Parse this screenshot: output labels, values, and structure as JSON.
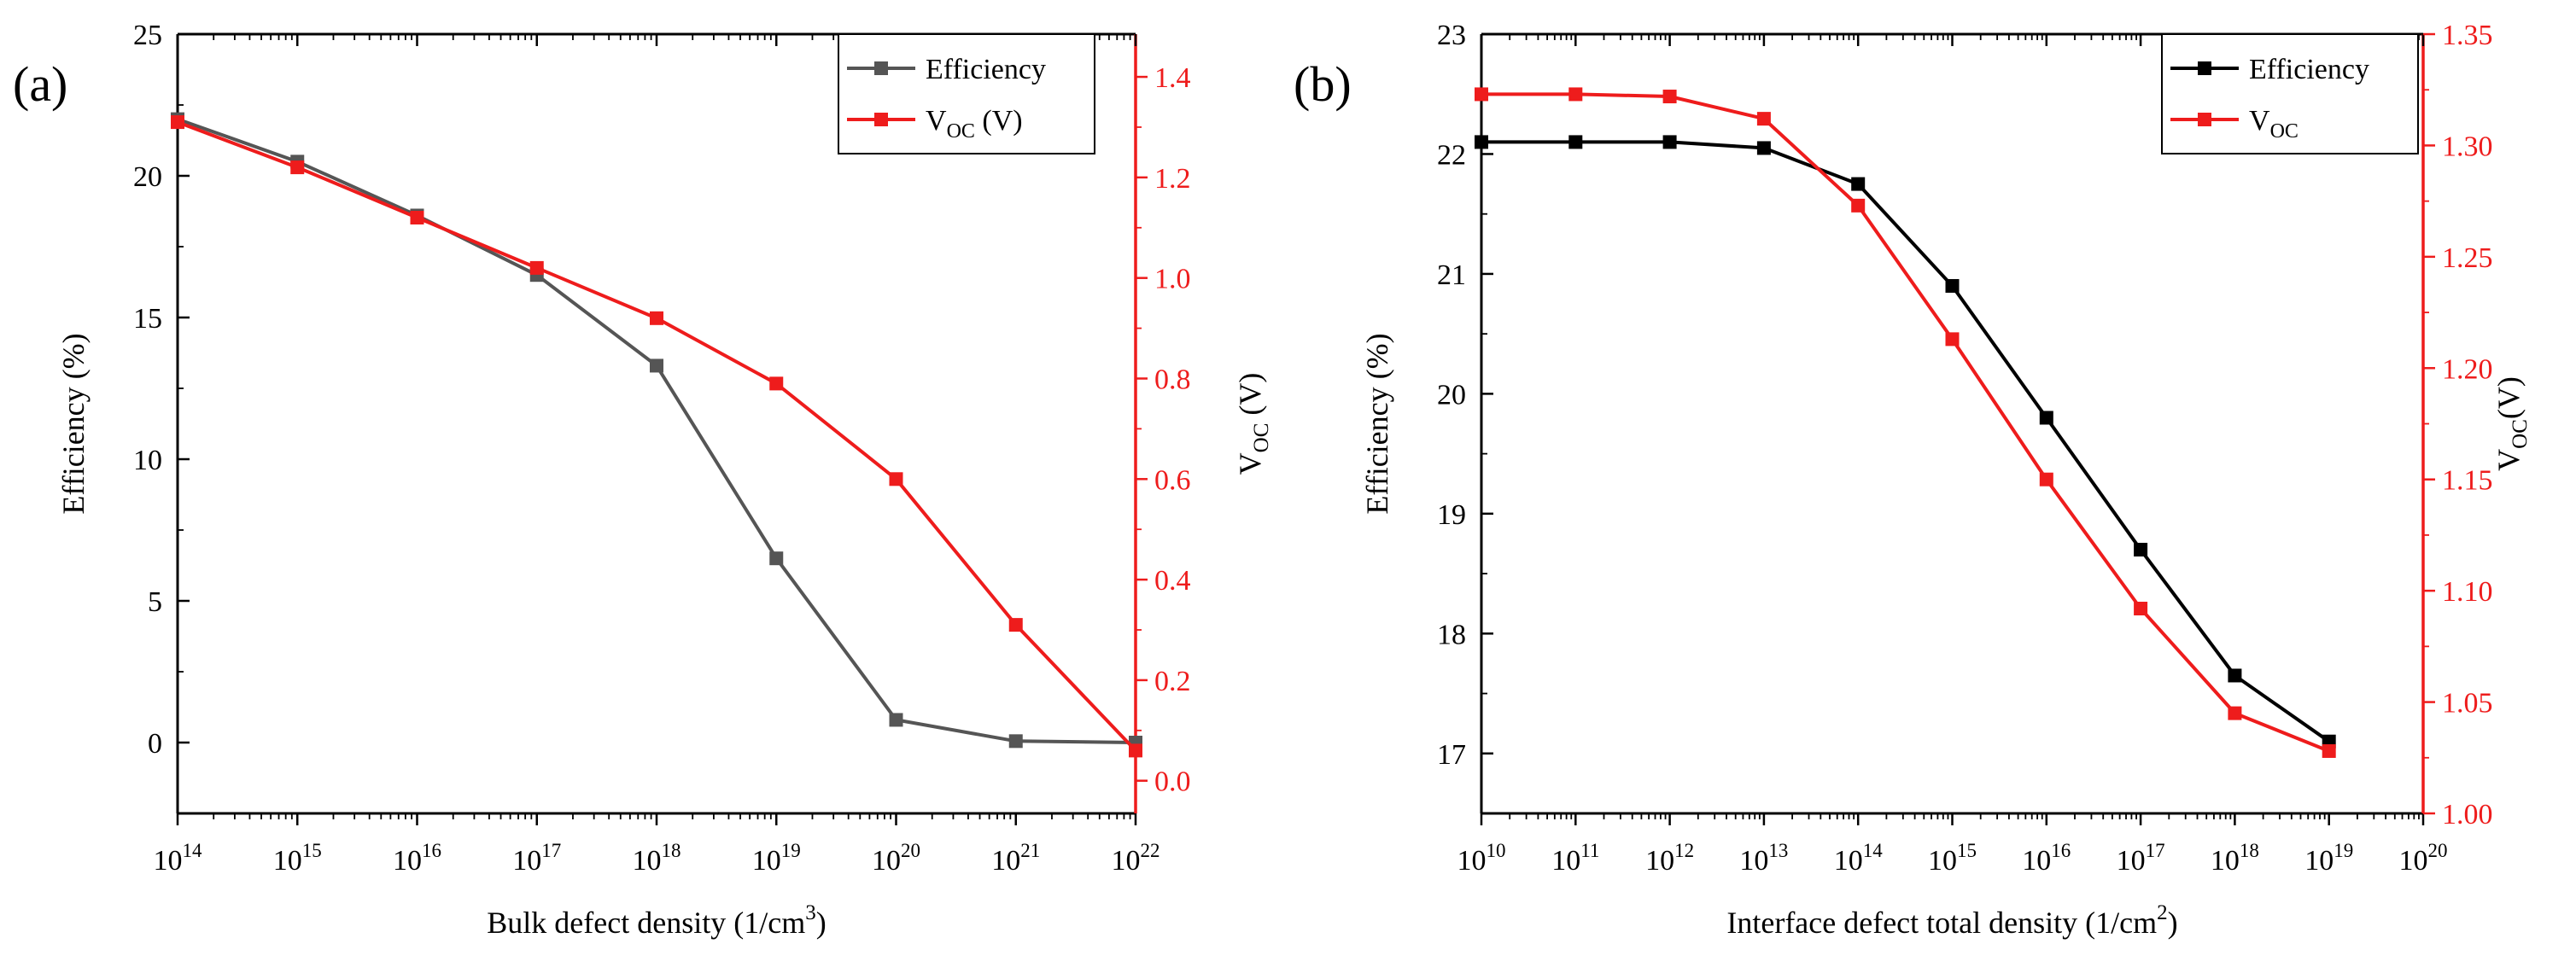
{
  "figure": {
    "colors": {
      "black": "#000000",
      "grey": "#555555",
      "red": "#ee1c1c",
      "white": "#ffffff"
    }
  },
  "chart_data": [
    {
      "panel_label": "(a)",
      "type": "line",
      "xlabel": "Bulk defect density (1/cm",
      "xlabel_sup": "3",
      "xlabel_tail": ")",
      "x_scale": "log",
      "xlim": [
        14,
        22
      ],
      "x_ticks": [
        {
          "base": "10",
          "exp": "14"
        },
        {
          "base": "10",
          "exp": "15"
        },
        {
          "base": "10",
          "exp": "16"
        },
        {
          "base": "10",
          "exp": "17"
        },
        {
          "base": "10",
          "exp": "18"
        },
        {
          "base": "10",
          "exp": "19"
        },
        {
          "base": "10",
          "exp": "20"
        },
        {
          "base": "10",
          "exp": "21"
        },
        {
          "base": "10",
          "exp": "22"
        }
      ],
      "y_left": {
        "label": "Efficiency (%)",
        "lim": [
          -2.5,
          25
        ],
        "ticks": [
          "0",
          "5",
          "10",
          "15",
          "20",
          "25"
        ]
      },
      "y_right": {
        "label_main": "V",
        "label_sub": "OC",
        "label_tail": " (V)",
        "lim": [
          -0.065,
          1.485
        ],
        "ticks": [
          "0.0",
          "0.2",
          "0.4",
          "0.6",
          "0.8",
          "1.0",
          "1.2",
          "1.4"
        ]
      },
      "legend": {
        "position": "top-right",
        "entries": [
          {
            "name": "Efficiency"
          },
          {
            "main": "V",
            "sub": "OC",
            "tail": " (V)"
          }
        ]
      },
      "series": [
        {
          "name": "Efficiency",
          "axis": "left",
          "color": "#555555",
          "x": [
            14,
            15,
            16,
            17,
            18,
            19,
            20,
            21,
            22
          ],
          "values": [
            22.0,
            20.5,
            18.6,
            16.5,
            13.3,
            6.5,
            0.8,
            0.05,
            0.0
          ]
        },
        {
          "name": "V_OC (V)",
          "axis": "right",
          "color": "#ee1c1c",
          "x": [
            14,
            15,
            16,
            17,
            18,
            19,
            20,
            21,
            22
          ],
          "values": [
            1.31,
            1.22,
            1.12,
            1.02,
            0.92,
            0.79,
            0.6,
            0.31,
            0.06
          ]
        }
      ]
    },
    {
      "panel_label": "(b)",
      "type": "line",
      "xlabel": "Interface defect total density (1/cm",
      "xlabel_sup": "2",
      "xlabel_tail": ")",
      "x_scale": "log",
      "xlim": [
        10,
        20
      ],
      "x_ticks": [
        {
          "base": "10",
          "exp": "10"
        },
        {
          "base": "10",
          "exp": "11"
        },
        {
          "base": "10",
          "exp": "12"
        },
        {
          "base": "10",
          "exp": "13"
        },
        {
          "base": "10",
          "exp": "14"
        },
        {
          "base": "10",
          "exp": "15"
        },
        {
          "base": "10",
          "exp": "16"
        },
        {
          "base": "10",
          "exp": "17"
        },
        {
          "base": "10",
          "exp": "18"
        },
        {
          "base": "10",
          "exp": "19"
        },
        {
          "base": "10",
          "exp": "20"
        }
      ],
      "y_left": {
        "label": "Efficiency (%)",
        "lim": [
          16.5,
          23
        ],
        "ticks": [
          "17",
          "18",
          "19",
          "20",
          "21",
          "22",
          "23"
        ]
      },
      "y_right": {
        "label_main": "V",
        "label_sub": "OC",
        "label_tail": "(V)",
        "lim": [
          1.0,
          1.35
        ],
        "ticks": [
          "1.00",
          "1.05",
          "1.10",
          "1.15",
          "1.20",
          "1.25",
          "1.30",
          "1.35"
        ]
      },
      "legend": {
        "position": "top-right",
        "entries": [
          {
            "name": "Efficiency"
          },
          {
            "main": "V",
            "sub": "OC",
            "tail": ""
          }
        ]
      },
      "series": [
        {
          "name": "Efficiency",
          "axis": "left",
          "color": "#000000",
          "x": [
            10,
            11,
            12,
            13,
            14,
            15,
            16,
            17,
            18,
            19
          ],
          "values": [
            22.1,
            22.1,
            22.1,
            22.05,
            21.75,
            20.9,
            19.8,
            18.7,
            17.65,
            17.1
          ]
        },
        {
          "name": "V_OC",
          "axis": "right",
          "color": "#ee1c1c",
          "x": [
            10,
            11,
            12,
            13,
            14,
            15,
            16,
            17,
            18,
            19
          ],
          "values": [
            1.323,
            1.323,
            1.322,
            1.312,
            1.273,
            1.213,
            1.15,
            1.092,
            1.045,
            1.028
          ]
        }
      ]
    }
  ]
}
